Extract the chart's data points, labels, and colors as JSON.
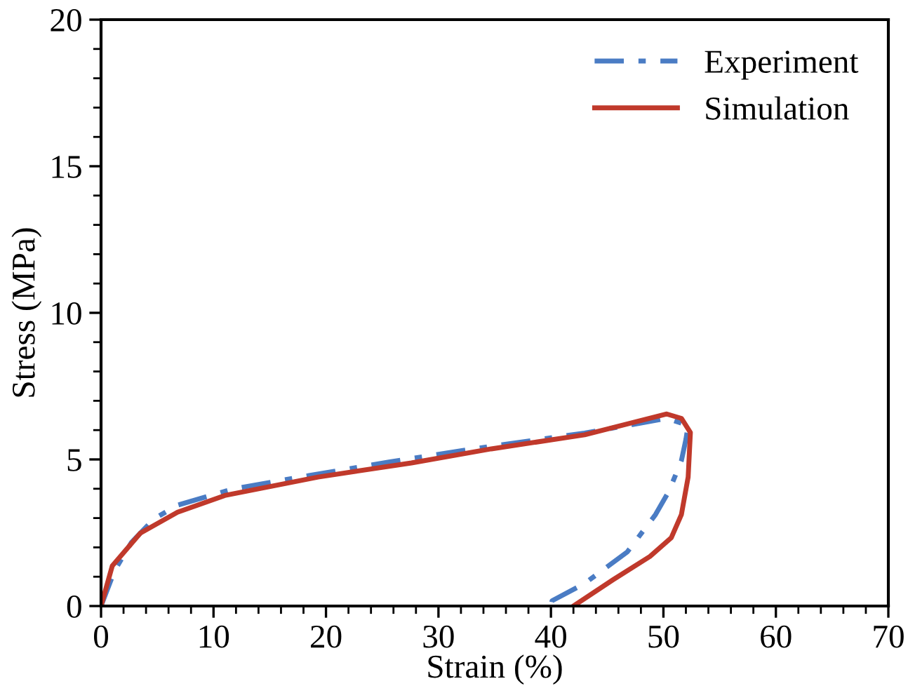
{
  "chart_data": {
    "type": "line",
    "xlabel": "Strain (%)",
    "ylabel": "Stress (MPa)",
    "xlim": [
      0,
      70
    ],
    "xticks": [
      0,
      10,
      20,
      30,
      40,
      50,
      60,
      70
    ],
    "ylim": [
      0,
      20
    ],
    "yticks": [
      0,
      5,
      10,
      15,
      20
    ],
    "grid": false,
    "legend": "top right",
    "marker": "none",
    "series": [
      {
        "name": "Experiment",
        "color": "#4a7cc4",
        "line_style": "dashdot",
        "x": [
          0,
          1.2,
          2.7,
          4.7,
          6.8,
          11.8,
          18.5,
          25.6,
          32.6,
          35.5,
          43,
          50.3,
          52.2,
          52,
          51.6,
          50.5,
          49.3,
          46.8,
          43,
          40.1,
          40
        ],
        "values": [
          0,
          1.2,
          2.17,
          2.97,
          3.44,
          4.0,
          4.45,
          4.91,
          5.33,
          5.49,
          5.9,
          6.4,
          6.16,
          5.68,
          4.96,
          3.92,
          3.12,
          1.85,
          0.77,
          0.18,
          0
        ]
      },
      {
        "name": "Simulation",
        "color": "#c0392b",
        "line_style": "solid",
        "x": [
          0,
          1.0,
          3.5,
          6.8,
          11,
          19.3,
          27.6,
          34.7,
          43,
          50.3,
          51.6,
          52.4,
          52.2,
          51.6,
          50.7,
          48.8,
          45.5,
          42
        ],
        "values": [
          0,
          1.37,
          2.49,
          3.2,
          3.77,
          4.4,
          4.88,
          5.36,
          5.84,
          6.55,
          6.4,
          5.92,
          4.4,
          3.12,
          2.33,
          1.69,
          0.89,
          0
        ]
      }
    ]
  }
}
